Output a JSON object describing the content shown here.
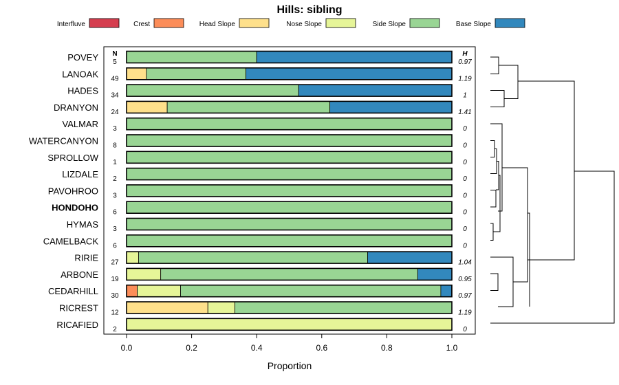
{
  "chart_data": {
    "type": "bar",
    "orientation": "horizontal",
    "stacked": true,
    "title": "Hills: sibling",
    "xlabel": "Proportion",
    "ylabel": "",
    "xlim": [
      0,
      1
    ],
    "x_ticks": [
      "0.0",
      "0.2",
      "0.4",
      "0.6",
      "0.8",
      "1.0"
    ],
    "x_tick_values": [
      0,
      0.2,
      0.4,
      0.6,
      0.8,
      1.0
    ],
    "n_header": "N",
    "h_header": "H",
    "legend": [
      {
        "label": "Interfluve",
        "color": "#d53e4f"
      },
      {
        "label": "Crest",
        "color": "#fc8d59"
      },
      {
        "label": "Head Slope",
        "color": "#fee08b"
      },
      {
        "label": "Nose Slope",
        "color": "#e6f598"
      },
      {
        "label": "Side Slope",
        "color": "#99d594"
      },
      {
        "label": "Base Slope",
        "color": "#3288bd"
      }
    ],
    "highlighted_category": "HONDOHO",
    "categories": [
      "POVEY",
      "LANOAK",
      "HADES",
      "DRANYON",
      "VALMAR",
      "WATERCANYON",
      "SPROLLOW",
      "LIZDALE",
      "PAVOHROO",
      "HONDOHO",
      "HYMAS",
      "CAMELBACK",
      "RIRIE",
      "ARBONE",
      "CEDARHILL",
      "RICREST",
      "RICAFIED"
    ],
    "n_values": [
      "5",
      "49",
      "34",
      "24",
      "3",
      "8",
      "1",
      "2",
      "3",
      "6",
      "3",
      "6",
      "27",
      "19",
      "30",
      "12",
      "2"
    ],
    "h_values": [
      "0.97",
      "1.19",
      "1",
      "1.41",
      "0",
      "0",
      "0",
      "0",
      "0",
      "0",
      "0",
      "0",
      "1.04",
      "0.95",
      "0.97",
      "1.19",
      "0"
    ],
    "series": [
      {
        "name": "Interfluve",
        "values": [
          0,
          0,
          0,
          0,
          0,
          0,
          0,
          0,
          0,
          0,
          0,
          0,
          0,
          0,
          0,
          0,
          0
        ]
      },
      {
        "name": "Crest",
        "values": [
          0,
          0,
          0,
          0,
          0,
          0,
          0,
          0,
          0,
          0,
          0,
          0,
          0,
          0,
          0.033,
          0,
          0
        ]
      },
      {
        "name": "Head Slope",
        "values": [
          0,
          0.061,
          0,
          0.125,
          0,
          0,
          0,
          0,
          0,
          0,
          0,
          0,
          0,
          0,
          0,
          0.25,
          0
        ]
      },
      {
        "name": "Nose Slope",
        "values": [
          0,
          0,
          0,
          0,
          0,
          0,
          0,
          0,
          0,
          0,
          0,
          0,
          0.037,
          0.105,
          0.133,
          0.083,
          1.0
        ]
      },
      {
        "name": "Side Slope",
        "values": [
          0.4,
          0.306,
          0.529,
          0.5,
          1,
          1,
          1,
          1,
          1,
          1,
          1,
          1,
          0.704,
          0.79,
          0.8,
          0.667,
          0
        ]
      },
      {
        "name": "Base Slope",
        "values": [
          0.6,
          0.633,
          0.471,
          0.375,
          0,
          0,
          0,
          0,
          0,
          0,
          0,
          0,
          0.259,
          0.105,
          0.033,
          0,
          0
        ]
      }
    ]
  }
}
